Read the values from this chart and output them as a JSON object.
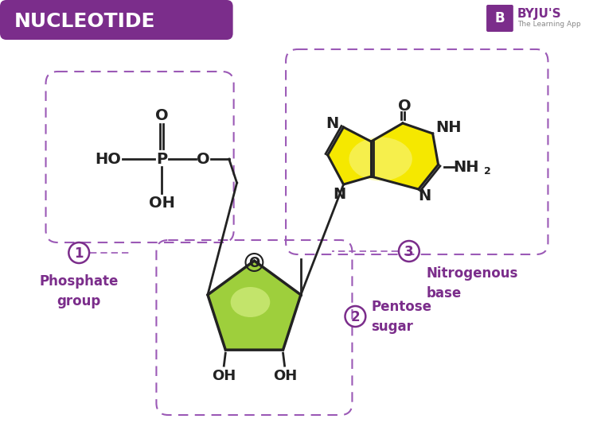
{
  "title": "NUCLEOTIDE",
  "title_bg": "#7b2d8b",
  "title_color": "#ffffff",
  "bg_color": "#ffffff",
  "purple": "#7b2d8b",
  "dark": "#222222",
  "yellow_fill": "#f5e800",
  "yellow_light": "#f8f580",
  "green_fill": "#9ecf3c",
  "green_light": "#d4ed80",
  "dashed_box_color": "#9b59b6",
  "label1": "Phosphate\ngroup",
  "label2": "Pentose\nsugar",
  "label3": "Nitrogenous\nbase",
  "byju_purple": "#7b2d8b",
  "byju_gray": "#888888"
}
